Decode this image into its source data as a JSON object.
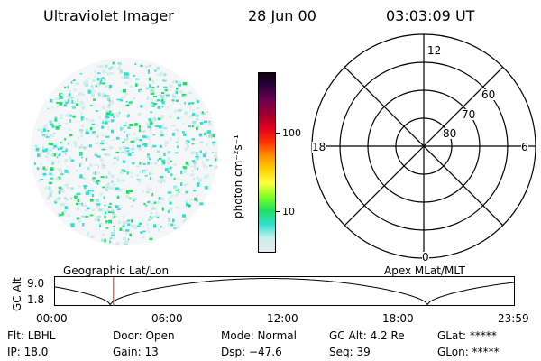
{
  "header": {
    "instrument": "Ultraviolet Imager",
    "date": "28 Jun 00",
    "time": "03:03:09 UT"
  },
  "colorbar": {
    "unit_label": "photon cm⁻²s⁻¹",
    "ticks": [
      "100",
      "10"
    ],
    "colors": [
      "#e8e8ee",
      "#c8f0ec",
      "#30e0d0",
      "#20e060",
      "#80ff20",
      "#ffff40",
      "#ffd000",
      "#ff9000",
      "#ff3000",
      "#e00020",
      "#a00030",
      "#700050",
      "#300040",
      "#100010"
    ]
  },
  "polar_plot": {
    "label_top": "12",
    "label_bottom": "0",
    "label_left": "18",
    "label_right": "6",
    "lat_labels": [
      "60",
      "70",
      "80"
    ]
  },
  "altitude_panel": {
    "left_caption": "Geographic Lat/Lon",
    "right_caption": "Apex MLat/MLT",
    "y_axis_label": "GC Alt",
    "y_ticks": [
      "9.0",
      "1.8"
    ],
    "x_ticks": [
      "00:00",
      "06:00",
      "12:00",
      "18:00",
      "23:59"
    ],
    "marker_time_hours": 3.05
  },
  "status": {
    "filter": "Flt: LBHL",
    "door": "Door: Open",
    "mode": "Mode: Normal",
    "gc_alt": "GC Alt: 4.2 Re",
    "glat": "GLat: *****",
    "ip": "IP: 18.0",
    "gain": "Gain: 13",
    "dsp": "Dsp:  −47.6",
    "seq": "Seq: 39",
    "glon": "GLon: *****"
  }
}
